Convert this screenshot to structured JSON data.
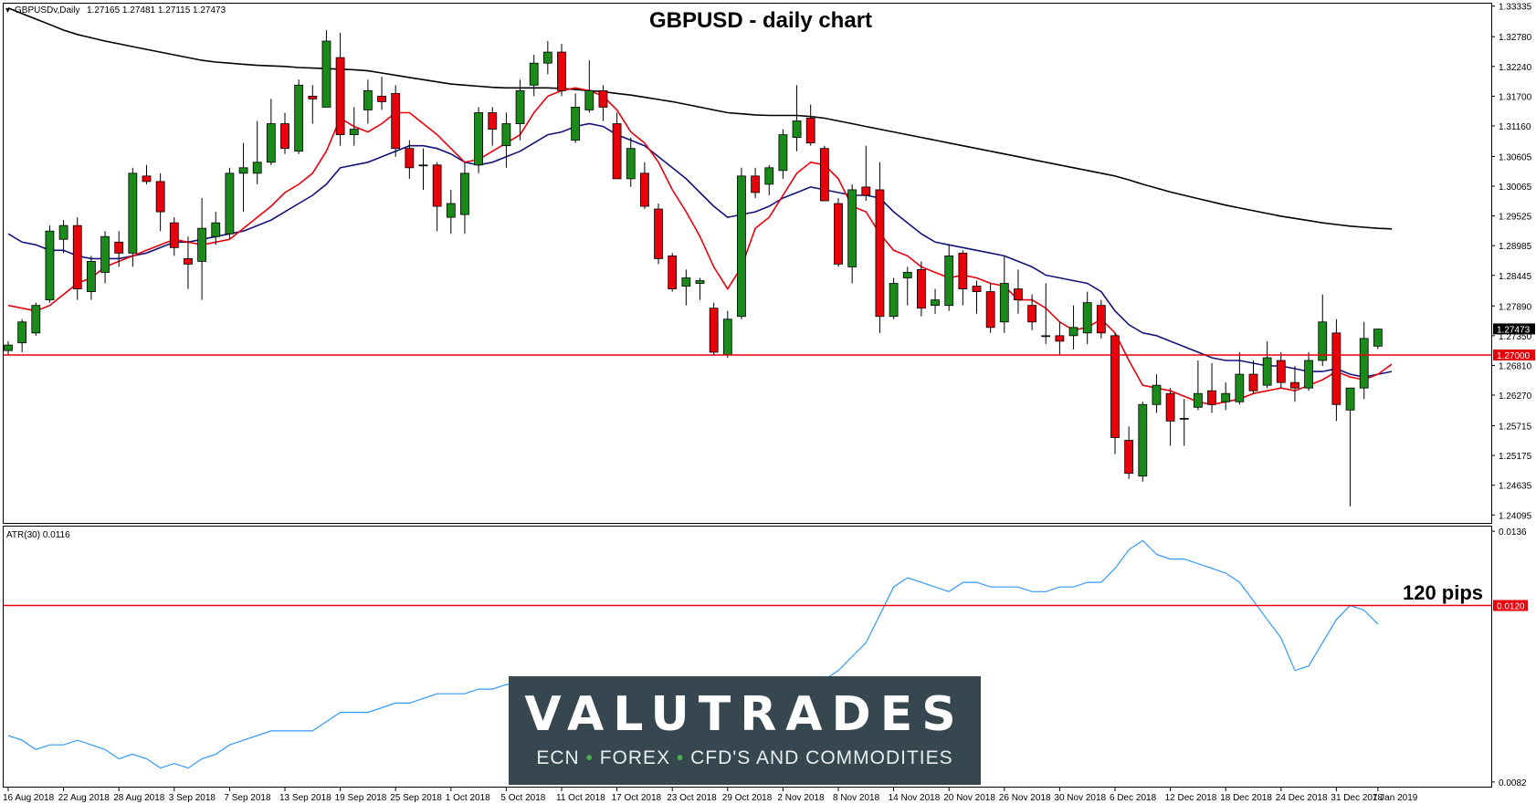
{
  "header": {
    "symbol_label": "GBPUSDv,Daily",
    "ohlc": "1.27165 1.27481 1.27115 1.27473",
    "indicator_label": "ATR(30) 0.0116"
  },
  "brand": {
    "name": "VALUTRADES",
    "tagline_parts": [
      "ECN",
      "FOREX",
      "CFD'S AND COMMODITIES"
    ],
    "separator": "•"
  },
  "colors": {
    "bull": "#1a8a1a",
    "bear": "#e8000b",
    "ema_fast": "#e8000b",
    "ema_slow": "#13137a",
    "sma_long": "#000000",
    "atr": "#3399ff",
    "level": "#e8000b",
    "brand_bg": "#37474f"
  },
  "chart_data": [
    {
      "type": "candlestick",
      "title": "GBPUSD - daily chart",
      "price_ticks": [
        "1.33335",
        "1.32780",
        "1.32240",
        "1.31700",
        "1.31160",
        "1.30605",
        "1.30065",
        "1.29525",
        "1.28985",
        "1.28445",
        "1.27890",
        "1.27350",
        "1.26810",
        "1.26270",
        "1.25715",
        "1.25175",
        "1.24635",
        "1.24095"
      ],
      "ylim": [
        1.2395,
        1.3338
      ],
      "current_price": "1.27473",
      "horizontal_level": {
        "value": 1.27,
        "label": "1.27000"
      },
      "x_labels": [
        {
          "i": 0,
          "text": "16 Aug 2018"
        },
        {
          "i": 4,
          "text": "22 Aug 2018"
        },
        {
          "i": 8,
          "text": "28 Aug 2018"
        },
        {
          "i": 12,
          "text": "3 Sep 2018"
        },
        {
          "i": 16,
          "text": "7 Sep 2018"
        },
        {
          "i": 20,
          "text": "13 Sep 2018"
        },
        {
          "i": 24,
          "text": "19 Sep 2018"
        },
        {
          "i": 28,
          "text": "25 Sep 2018"
        },
        {
          "i": 32,
          "text": "1 Oct 2018"
        },
        {
          "i": 36,
          "text": "5 Oct 2018"
        },
        {
          "i": 40,
          "text": "11 Oct 2018"
        },
        {
          "i": 44,
          "text": "17 Oct 2018"
        },
        {
          "i": 48,
          "text": "23 Oct 2018"
        },
        {
          "i": 52,
          "text": "29 Oct 2018"
        },
        {
          "i": 56,
          "text": "2 Nov 2018"
        },
        {
          "i": 60,
          "text": "8 Nov 2018"
        },
        {
          "i": 64,
          "text": "14 Nov 2018"
        },
        {
          "i": 68,
          "text": "20 Nov 2018"
        },
        {
          "i": 72,
          "text": "26 Nov 2018"
        },
        {
          "i": 76,
          "text": "30 Nov 2018"
        },
        {
          "i": 80,
          "text": "6 Dec 2018"
        },
        {
          "i": 84,
          "text": "12 Dec 2018"
        },
        {
          "i": 88,
          "text": "18 Dec 2018"
        },
        {
          "i": 92,
          "text": "24 Dec 2018"
        },
        {
          "i": 96,
          "text": "31 Dec 2018"
        },
        {
          "i": 99,
          "text": "7 Jan 2019"
        }
      ],
      "ohlc": [
        [
          1.2708,
          1.2725,
          1.27,
          1.2718
        ],
        [
          1.2722,
          1.2765,
          1.2705,
          1.276
        ],
        [
          1.274,
          1.2795,
          1.2735,
          1.279
        ],
        [
          1.28,
          1.2935,
          1.2795,
          1.2925
        ],
        [
          1.291,
          1.2945,
          1.2885,
          1.2935
        ],
        [
          1.2935,
          1.295,
          1.28,
          1.282
        ],
        [
          1.2815,
          1.288,
          1.28,
          1.287
        ],
        [
          1.285,
          1.2925,
          1.283,
          1.2915
        ],
        [
          1.2905,
          1.2925,
          1.286,
          1.2885
        ],
        [
          1.2885,
          1.304,
          1.286,
          1.303
        ],
        [
          1.3025,
          1.3045,
          1.301,
          1.3015
        ],
        [
          1.3015,
          1.303,
          1.2925,
          1.296
        ],
        [
          1.294,
          1.295,
          1.288,
          1.2895
        ],
        [
          1.2875,
          1.2915,
          1.282,
          1.2865
        ],
        [
          1.287,
          1.2985,
          1.28,
          1.293
        ],
        [
          1.2915,
          1.296,
          1.29,
          1.294
        ],
        [
          1.292,
          1.304,
          1.291,
          1.303
        ],
        [
          1.303,
          1.3085,
          1.296,
          1.304
        ],
        [
          1.303,
          1.3125,
          1.301,
          1.305
        ],
        [
          1.305,
          1.3165,
          1.3045,
          1.312
        ],
        [
          1.312,
          1.314,
          1.3065,
          1.3075
        ],
        [
          1.307,
          1.32,
          1.3065,
          1.319
        ],
        [
          1.317,
          1.319,
          1.312,
          1.3165
        ],
        [
          1.315,
          1.329,
          1.315,
          1.327
        ],
        [
          1.324,
          1.3285,
          1.308,
          1.31
        ],
        [
          1.31,
          1.315,
          1.308,
          1.311
        ],
        [
          1.3145,
          1.32,
          1.312,
          1.318
        ],
        [
          1.317,
          1.3205,
          1.3145,
          1.316
        ],
        [
          1.3175,
          1.319,
          1.306,
          1.3075
        ],
        [
          1.3075,
          1.309,
          1.302,
          1.304
        ],
        [
          1.3045,
          1.3075,
          1.3,
          1.3045
        ],
        [
          1.3045,
          1.305,
          1.2925,
          1.297
        ],
        [
          1.295,
          1.3,
          1.292,
          1.2975
        ],
        [
          1.2955,
          1.305,
          1.292,
          1.303
        ],
        [
          1.3045,
          1.315,
          1.303,
          1.314
        ],
        [
          1.314,
          1.315,
          1.308,
          1.311
        ],
        [
          1.308,
          1.314,
          1.304,
          1.312
        ],
        [
          1.312,
          1.32,
          1.309,
          1.318
        ],
        [
          1.319,
          1.3245,
          1.317,
          1.323
        ],
        [
          1.323,
          1.327,
          1.321,
          1.325
        ],
        [
          1.325,
          1.3265,
          1.317,
          1.318
        ],
        [
          1.309,
          1.3175,
          1.3085,
          1.315
        ],
        [
          1.3145,
          1.3235,
          1.314,
          1.318
        ],
        [
          1.318,
          1.319,
          1.3125,
          1.315
        ],
        [
          1.312,
          1.314,
          1.302,
          1.302
        ],
        [
          1.302,
          1.3095,
          1.3005,
          1.3075
        ],
        [
          1.303,
          1.305,
          1.2965,
          1.297
        ],
        [
          1.2965,
          1.2975,
          1.2865,
          1.2875
        ],
        [
          1.288,
          1.2885,
          1.2815,
          1.282
        ],
        [
          1.2825,
          1.2855,
          1.279,
          1.284
        ],
        [
          1.283,
          1.284,
          1.28,
          1.2835
        ],
        [
          1.2785,
          1.2795,
          1.27,
          1.2705
        ],
        [
          1.27,
          1.278,
          1.2695,
          1.2765
        ],
        [
          1.277,
          1.304,
          1.2765,
          1.3025
        ],
        [
          1.3025,
          1.304,
          1.2985,
          1.2995
        ],
        [
          1.301,
          1.3045,
          1.299,
          1.304
        ],
        [
          1.3035,
          1.311,
          1.302,
          1.31
        ],
        [
          1.3095,
          1.319,
          1.307,
          1.3125
        ],
        [
          1.313,
          1.3155,
          1.308,
          1.3085
        ],
        [
          1.3075,
          1.308,
          1.298,
          1.298
        ],
        [
          1.2975,
          1.2985,
          1.286,
          1.2865
        ],
        [
          1.286,
          1.301,
          1.283,
          1.3
        ],
        [
          1.3005,
          1.308,
          1.298,
          1.299
        ],
        [
          1.3,
          1.305,
          1.274,
          1.277
        ],
        [
          1.277,
          1.284,
          1.2765,
          1.283
        ],
        [
          1.284,
          1.286,
          1.279,
          1.285
        ],
        [
          1.2855,
          1.287,
          1.277,
          1.2785
        ],
        [
          1.279,
          1.282,
          1.2775,
          1.28
        ],
        [
          1.279,
          1.29,
          1.278,
          1.288
        ],
        [
          1.2885,
          1.289,
          1.279,
          1.282
        ],
        [
          1.2825,
          1.2835,
          1.2775,
          1.2815
        ],
        [
          1.2815,
          1.283,
          1.274,
          1.275
        ],
        [
          1.276,
          1.288,
          1.274,
          1.283
        ],
        [
          1.282,
          1.2855,
          1.2775,
          1.28
        ],
        [
          1.279,
          1.281,
          1.2745,
          1.276
        ],
        [
          1.2735,
          1.283,
          1.272,
          1.2735
        ],
        [
          1.2735,
          1.276,
          1.27,
          1.2725
        ],
        [
          1.2735,
          1.279,
          1.271,
          1.275
        ],
        [
          1.274,
          1.2815,
          1.272,
          1.2795
        ],
        [
          1.279,
          1.28,
          1.273,
          1.274
        ],
        [
          1.2735,
          1.274,
          1.252,
          1.255
        ],
        [
          1.2545,
          1.257,
          1.2475,
          1.2485
        ],
        [
          1.248,
          1.2615,
          1.247,
          1.261
        ],
        [
          1.261,
          1.2665,
          1.2595,
          1.2645
        ],
        [
          1.263,
          1.264,
          1.2535,
          1.258
        ],
        [
          1.2585,
          1.262,
          1.2535,
          1.2585
        ],
        [
          1.2605,
          1.269,
          1.26,
          1.263
        ],
        [
          1.2635,
          1.2685,
          1.2595,
          1.261
        ],
        [
          1.2615,
          1.265,
          1.26,
          1.263
        ],
        [
          1.2615,
          1.2705,
          1.261,
          1.2665
        ],
        [
          1.2665,
          1.269,
          1.263,
          1.2635
        ],
        [
          1.2645,
          1.2725,
          1.264,
          1.2695
        ],
        [
          1.269,
          1.2705,
          1.264,
          1.265
        ],
        [
          1.265,
          1.268,
          1.2615,
          1.264
        ],
        [
          1.264,
          1.2705,
          1.2635,
          1.269
        ],
        [
          1.269,
          1.281,
          1.268,
          1.276
        ],
        [
          1.274,
          1.2765,
          1.258,
          1.261
        ],
        [
          1.26,
          1.264,
          1.2425,
          1.264
        ],
        [
          1.264,
          1.276,
          1.262,
          1.273
        ],
        [
          1.2716,
          1.2748,
          1.2711,
          1.2747
        ]
      ],
      "ema_fast": [
        1.279,
        1.2785,
        1.278,
        1.279,
        1.281,
        1.283,
        1.284,
        1.286,
        1.287,
        1.288,
        1.289,
        1.29,
        1.291,
        1.2905,
        1.29,
        1.2905,
        1.291,
        1.293,
        1.295,
        1.297,
        1.2995,
        1.301,
        1.303,
        1.307,
        1.313,
        1.3115,
        1.3105,
        1.312,
        1.314,
        1.314,
        1.312,
        1.31,
        1.3075,
        1.305,
        1.3055,
        1.307,
        1.3085,
        1.31,
        1.314,
        1.317,
        1.318,
        1.3185,
        1.318,
        1.317,
        1.3145,
        1.3105,
        1.3085,
        1.305,
        1.3,
        1.296,
        1.2915,
        1.286,
        1.282,
        1.286,
        1.293,
        1.295,
        1.299,
        1.303,
        1.305,
        1.3045,
        1.302,
        1.297,
        1.296,
        1.292,
        1.289,
        1.288,
        1.286,
        1.285,
        1.284,
        1.2845,
        1.284,
        1.283,
        1.2825,
        1.28,
        1.28,
        1.2785,
        1.276,
        1.2745,
        1.275,
        1.2765,
        1.274,
        1.269,
        1.2645,
        1.264,
        1.2635,
        1.2625,
        1.2615,
        1.261,
        1.2615,
        1.262,
        1.263,
        1.2635,
        1.264,
        1.2635,
        1.2645,
        1.2655,
        1.267,
        1.266,
        1.2655,
        1.2665,
        1.2683
      ],
      "ema_slow": [
        1.292,
        1.2905,
        1.29,
        1.289,
        1.289,
        1.288,
        1.2875,
        1.2875,
        1.2875,
        1.288,
        1.2885,
        1.2895,
        1.2905,
        1.2905,
        1.291,
        1.2915,
        1.292,
        1.2925,
        1.2935,
        1.2945,
        1.296,
        1.2975,
        1.299,
        1.301,
        1.304,
        1.3045,
        1.305,
        1.306,
        1.307,
        1.308,
        1.308,
        1.3075,
        1.3065,
        1.305,
        1.3045,
        1.305,
        1.306,
        1.307,
        1.3085,
        1.31,
        1.3105,
        1.3115,
        1.312,
        1.3115,
        1.31,
        1.309,
        1.308,
        1.306,
        1.304,
        1.302,
        1.2995,
        1.297,
        1.295,
        1.2955,
        1.296,
        1.297,
        1.2985,
        1.2995,
        1.3005,
        1.3,
        1.2995,
        1.299,
        1.299,
        1.2985,
        1.296,
        1.294,
        1.292,
        1.2905,
        1.29,
        1.2895,
        1.289,
        1.2885,
        1.288,
        1.287,
        1.286,
        1.2845,
        1.284,
        1.2835,
        1.283,
        1.2815,
        1.278,
        1.2755,
        1.274,
        1.2735,
        1.2725,
        1.2715,
        1.2705,
        1.2695,
        1.269,
        1.269,
        1.2685,
        1.268,
        1.268,
        1.2675,
        1.267,
        1.267,
        1.2675,
        1.2665,
        1.266,
        1.2665,
        1.267
      ],
      "sma_long": [
        1.333,
        1.332,
        1.331,
        1.33,
        1.329,
        1.3282,
        1.3276,
        1.327,
        1.3265,
        1.326,
        1.3255,
        1.325,
        1.3245,
        1.324,
        1.3235,
        1.3232,
        1.323,
        1.3228,
        1.3226,
        1.3225,
        1.3224,
        1.3222,
        1.3221,
        1.322,
        1.3219,
        1.3218,
        1.3216,
        1.3212,
        1.3208,
        1.3204,
        1.32,
        1.3196,
        1.3192,
        1.319,
        1.3188,
        1.3186,
        1.3185,
        1.3185,
        1.3185,
        1.3185,
        1.3184,
        1.3182,
        1.318,
        1.3178,
        1.3175,
        1.3172,
        1.3168,
        1.3164,
        1.316,
        1.3155,
        1.315,
        1.3145,
        1.314,
        1.3138,
        1.3136,
        1.3135,
        1.3135,
        1.3135,
        1.3133,
        1.313,
        1.3125,
        1.312,
        1.3115,
        1.311,
        1.3105,
        1.31,
        1.3095,
        1.309,
        1.3085,
        1.308,
        1.3075,
        1.307,
        1.3065,
        1.306,
        1.3055,
        1.305,
        1.3045,
        1.304,
        1.3035,
        1.303,
        1.3025,
        1.3018,
        1.301,
        1.3003,
        1.2996,
        1.299,
        1.2984,
        1.2978,
        1.2972,
        1.2967,
        1.2962,
        1.2957,
        1.2952,
        1.2948,
        1.2944,
        1.294,
        1.2937,
        1.2934,
        1.2932,
        1.293,
        1.2929
      ]
    },
    {
      "type": "line",
      "title": "ATR(30) 0.0116",
      "y_ticks": [
        "0.0136",
        "0.0082"
      ],
      "ylim": [
        0.0081,
        0.0137
      ],
      "horizontal_level": {
        "value": 0.012,
        "label": "0.0120"
      },
      "annotation": "120 pips",
      "values": [
        0.0092,
        0.0091,
        0.0089,
        0.009,
        0.009,
        0.0091,
        0.009,
        0.0089,
        0.0087,
        0.0088,
        0.0087,
        0.0085,
        0.0086,
        0.0085,
        0.0087,
        0.0088,
        0.009,
        0.0091,
        0.0092,
        0.0093,
        0.0093,
        0.0093,
        0.0093,
        0.0095,
        0.0097,
        0.0097,
        0.0097,
        0.0098,
        0.0099,
        0.0099,
        0.01,
        0.0101,
        0.0101,
        0.0101,
        0.0102,
        0.0102,
        0.0103,
        0.0103,
        0.0104,
        0.0103,
        0.0103,
        0.0103,
        0.0102,
        0.0102,
        0.0103,
        0.0102,
        0.0102,
        0.0102,
        0.0103,
        0.0102,
        0.0102,
        0.0103,
        0.0104,
        0.0102,
        0.0102,
        0.0102,
        0.0102,
        0.0102,
        0.0103,
        0.0104,
        0.0106,
        0.0109,
        0.0112,
        0.0118,
        0.0124,
        0.0126,
        0.0125,
        0.0124,
        0.0123,
        0.0125,
        0.0125,
        0.0124,
        0.0124,
        0.0124,
        0.0123,
        0.0123,
        0.0124,
        0.0124,
        0.0125,
        0.0125,
        0.0128,
        0.0132,
        0.0134,
        0.0131,
        0.013,
        0.013,
        0.0129,
        0.0128,
        0.0127,
        0.0125,
        0.0121,
        0.0117,
        0.0113,
        0.0106,
        0.0107,
        0.0112,
        0.0117,
        0.012,
        0.0119,
        0.0116
      ]
    }
  ]
}
